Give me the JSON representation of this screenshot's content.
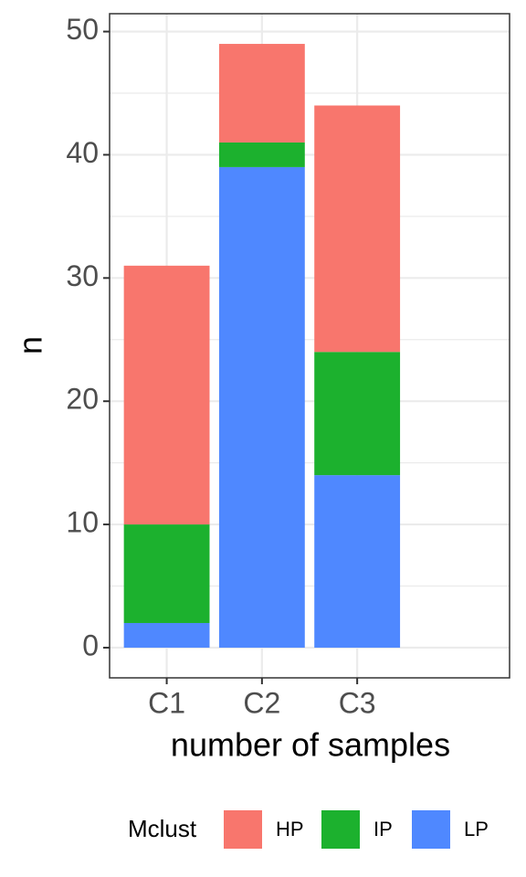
{
  "chart_data": {
    "type": "stacked_bar",
    "x_label": "number of samples",
    "y_label": "n",
    "categories": [
      "C1",
      "C2",
      "C3"
    ],
    "series": [
      {
        "name": "HP",
        "color": "#f8766d",
        "values": [
          21,
          8,
          20
        ]
      },
      {
        "name": "IP",
        "color": "#1cb12e",
        "values": [
          8,
          2,
          10
        ]
      },
      {
        "name": "LP",
        "color": "#4f88ff",
        "values": [
          2,
          39,
          14
        ]
      }
    ],
    "stack_order": [
      "LP",
      "IP",
      "HP"
    ],
    "legend_title": "Mclust",
    "legend_position": "bottom",
    "ylim": [
      -2.45,
      51.45
    ],
    "yticks": [
      0,
      10,
      20,
      30,
      40,
      50
    ],
    "grid": true
  }
}
